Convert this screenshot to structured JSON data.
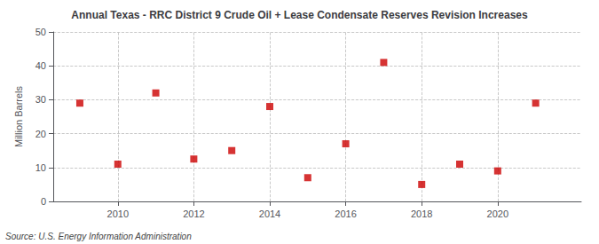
{
  "chart_data": {
    "type": "scatter",
    "title": "Annual Texas - RRC District 9 Crude Oil + Lease Condensate Reserves Revision Increases",
    "ylabel": "Million Barrels",
    "annotation": "Source: U.S. Energy Information Administration",
    "x": [
      2009,
      2010,
      2011,
      2012,
      2013,
      2014,
      2015,
      2016,
      2017,
      2018,
      2019,
      2020,
      2021
    ],
    "values": [
      29.0,
      11.0,
      32.0,
      12.5,
      15.0,
      28.0,
      7.0,
      17.0,
      41.0,
      5.0,
      11.0,
      9.0,
      29.0
    ],
    "color": "#cc0000",
    "marker": "square",
    "xlim": [
      2008.3,
      2022.2
    ],
    "xticks": [
      2010,
      2012,
      2014,
      2016,
      2018,
      2020
    ],
    "ylim": [
      0,
      50
    ],
    "yticks": [
      0,
      10,
      20,
      30,
      40,
      50
    ],
    "grid": true
  }
}
